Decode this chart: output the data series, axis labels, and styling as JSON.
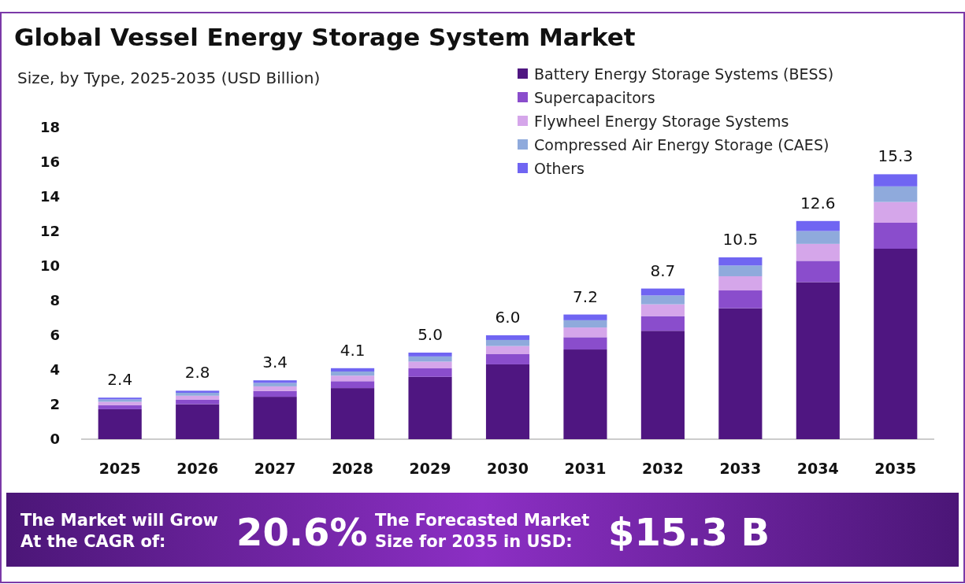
{
  "chart_data": {
    "type": "bar",
    "title": "Global Vessel Energy Storage System Market",
    "subtitle": "Size, by Type, 2025-2035 (USD Billion)",
    "categories": [
      "2025",
      "2026",
      "2027",
      "2028",
      "2029",
      "2030",
      "2031",
      "2032",
      "2033",
      "2034",
      "2035"
    ],
    "series": [
      {
        "name": "Battery Energy Storage Systems (BESS)",
        "color": "#4f1681",
        "values": [
          1.73,
          2.02,
          2.45,
          2.95,
          3.6,
          4.32,
          5.18,
          6.26,
          7.56,
          9.07,
          11.0
        ]
      },
      {
        "name": "Supercapacitors",
        "color": "#8a4dcc",
        "values": [
          0.24,
          0.27,
          0.33,
          0.4,
          0.49,
          0.59,
          0.71,
          0.85,
          1.03,
          1.23,
          1.5
        ]
      },
      {
        "name": "Flywheel Energy Storage Systems",
        "color": "#d5a6ea",
        "values": [
          0.19,
          0.22,
          0.27,
          0.32,
          0.39,
          0.47,
          0.56,
          0.68,
          0.82,
          0.98,
          1.2
        ]
      },
      {
        "name": "Compressed Air Energy Storage (CAES)",
        "color": "#8faadc",
        "values": [
          0.14,
          0.17,
          0.2,
          0.24,
          0.3,
          0.35,
          0.42,
          0.51,
          0.62,
          0.74,
          0.9
        ]
      },
      {
        "name": "Others",
        "color": "#7065f2",
        "values": [
          0.1,
          0.12,
          0.15,
          0.19,
          0.22,
          0.27,
          0.33,
          0.4,
          0.47,
          0.58,
          0.7
        ]
      }
    ],
    "stacked": true,
    "totals": [
      "2.4",
      "2.8",
      "3.4",
      "4.1",
      "5.0",
      "6.0",
      "7.2",
      "8.7",
      "10.5",
      "12.6",
      "15.3"
    ],
    "ylim": [
      0,
      18
    ],
    "yticks": [
      0,
      2,
      4,
      6,
      8,
      10,
      12,
      14,
      16,
      18
    ],
    "grid": false,
    "legend": "top right",
    "annotations": [
      "The Market will Grow\nAt the CAGR of:",
      "20.6%",
      "The Forecasted Market\nSize for 2035 in USD:",
      "$15.3 B"
    ]
  }
}
